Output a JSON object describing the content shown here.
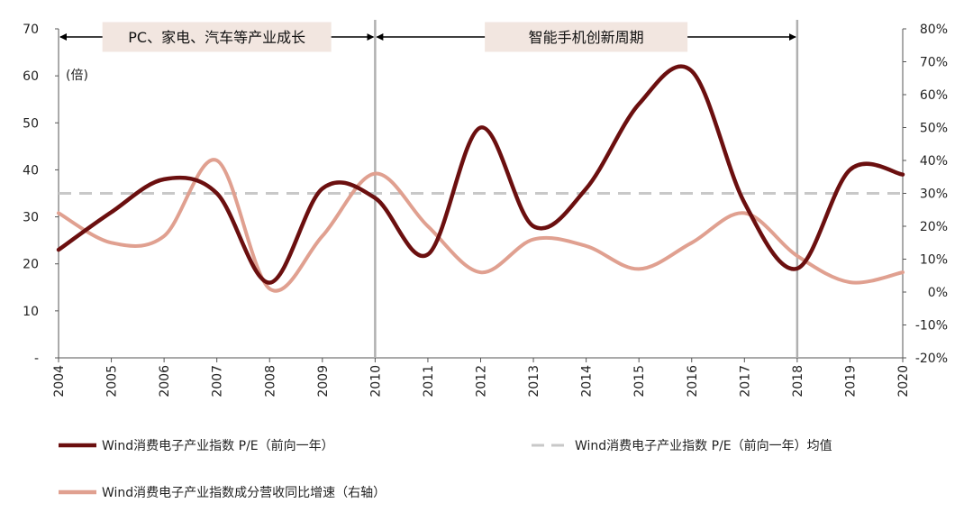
{
  "chart_data": {
    "type": "line",
    "x": [
      "2004",
      "2005",
      "2006",
      "2007",
      "2008",
      "2009",
      "2010",
      "2011",
      "2012",
      "2013",
      "2014",
      "2015",
      "2016",
      "2017",
      "2018",
      "2019",
      "2020"
    ],
    "ylim_left": [
      0,
      70
    ],
    "ylim_right": [
      -20,
      80
    ],
    "left_ticks": [
      "-",
      "10",
      "20",
      "30",
      "40",
      "50",
      "60",
      "70"
    ],
    "right_ticks": [
      "-20%",
      "-10%",
      "0%",
      "10%",
      "20%",
      "30%",
      "40%",
      "50%",
      "60%",
      "70%",
      "80%"
    ],
    "y_unit_label": "(倍)",
    "series": [
      {
        "name": "Wind消费电子产业指数 P/E（前向一年）",
        "axis": "left",
        "color": "#6b0f0f",
        "style": "solid",
        "values": [
          23,
          31,
          38,
          35,
          16,
          36,
          34,
          22,
          49,
          28,
          36,
          54,
          61,
          33,
          19,
          40,
          39
        ]
      },
      {
        "name": "Wind消费电子产业指数 P/E（前向一年）均值",
        "axis": "left",
        "color": "#c8c8c8",
        "style": "dashed",
        "values": [
          35,
          35,
          35,
          35,
          35,
          35,
          35,
          35,
          35,
          35,
          35,
          35,
          35,
          35,
          35,
          35,
          35
        ]
      },
      {
        "name": "Wind消费电子产业指数成分营收同比增速（右轴）",
        "axis": "right",
        "color": "#e0a090",
        "style": "solid",
        "values": [
          24,
          15,
          17,
          40,
          1,
          17,
          36,
          20,
          6,
          16,
          14,
          7,
          15,
          24,
          11,
          3,
          6
        ]
      }
    ],
    "annotations": [
      {
        "text": "PC、家电、汽车等产业成长",
        "from": "2004",
        "to": "2010"
      },
      {
        "text": "智能手机创新周期",
        "from": "2010",
        "to": "2018"
      }
    ],
    "vlines": [
      "2010",
      "2018"
    ],
    "legend_position": "bottom"
  }
}
